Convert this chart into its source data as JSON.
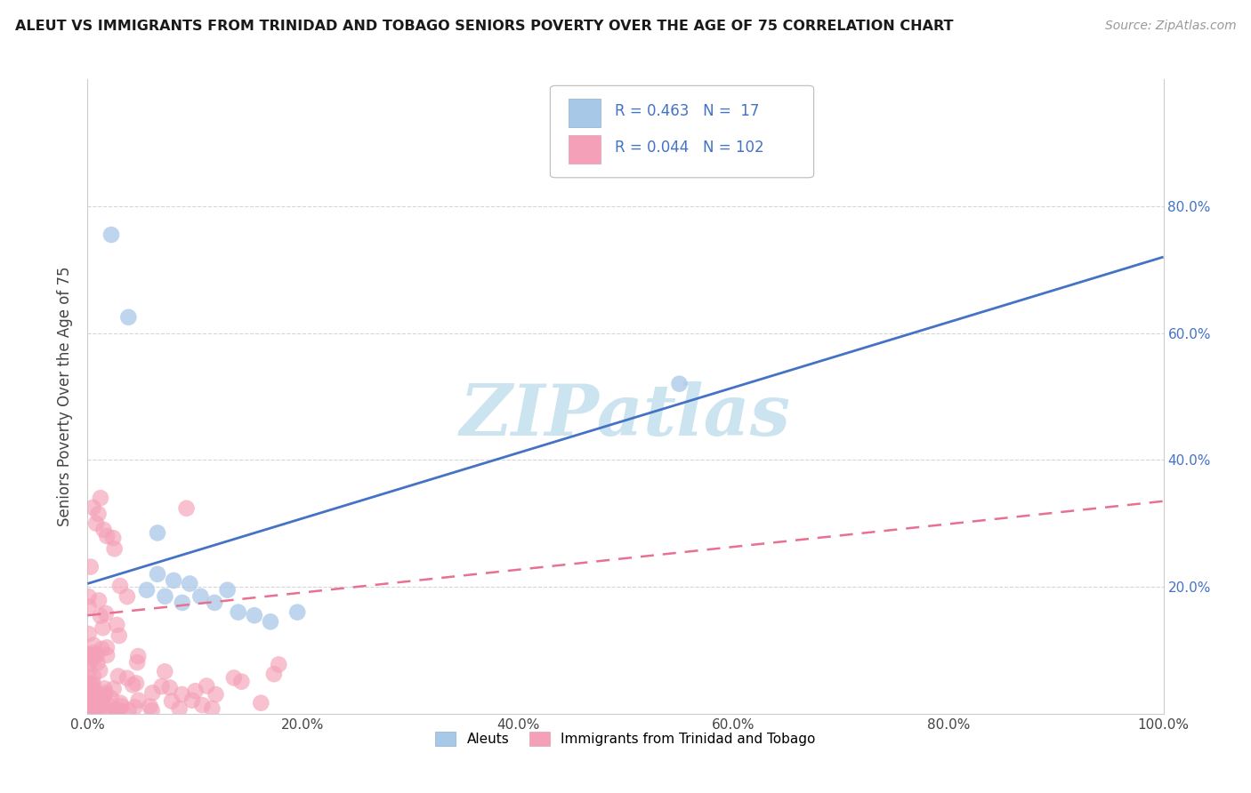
{
  "title": "ALEUT VS IMMIGRANTS FROM TRINIDAD AND TOBAGO SENIORS POVERTY OVER THE AGE OF 75 CORRELATION CHART",
  "source": "Source: ZipAtlas.com",
  "ylabel": "Seniors Poverty Over the Age of 75",
  "aleut_R": 0.463,
  "aleut_N": 17,
  "tt_R": 0.044,
  "tt_N": 102,
  "aleut_color": "#a8c8e8",
  "tt_color": "#f4a0b8",
  "aleut_line_color": "#4472c4",
  "tt_line_color": "#e87090",
  "background_color": "#ffffff",
  "grid_color": "#cccccc",
  "watermark_color": "#cce4f0",
  "xlim": [
    0,
    1.0
  ],
  "ylim": [
    0,
    1.0
  ],
  "xtick_vals": [
    0,
    0.2,
    0.4,
    0.6,
    0.8,
    1.0
  ],
  "xtick_labels": [
    "0.0%",
    "20.0%",
    "40.0%",
    "60.0%",
    "80.0%",
    "100.0%"
  ],
  "ytick_vals": [
    0.2,
    0.4,
    0.6,
    0.8
  ],
  "ytick_labels": [
    "20.0%",
    "40.0%",
    "60.0%",
    "80.0%"
  ],
  "legend_label_aleut": "Aleuts",
  "legend_label_tt": "Immigrants from Trinidad and Tobago",
  "aleut_line_x0": 0.0,
  "aleut_line_x1": 1.0,
  "aleut_line_y0": 0.205,
  "aleut_line_y1": 0.72,
  "tt_line_x0": 0.0,
  "tt_line_x1": 1.0,
  "tt_line_y0": 0.155,
  "tt_line_y1": 0.335
}
